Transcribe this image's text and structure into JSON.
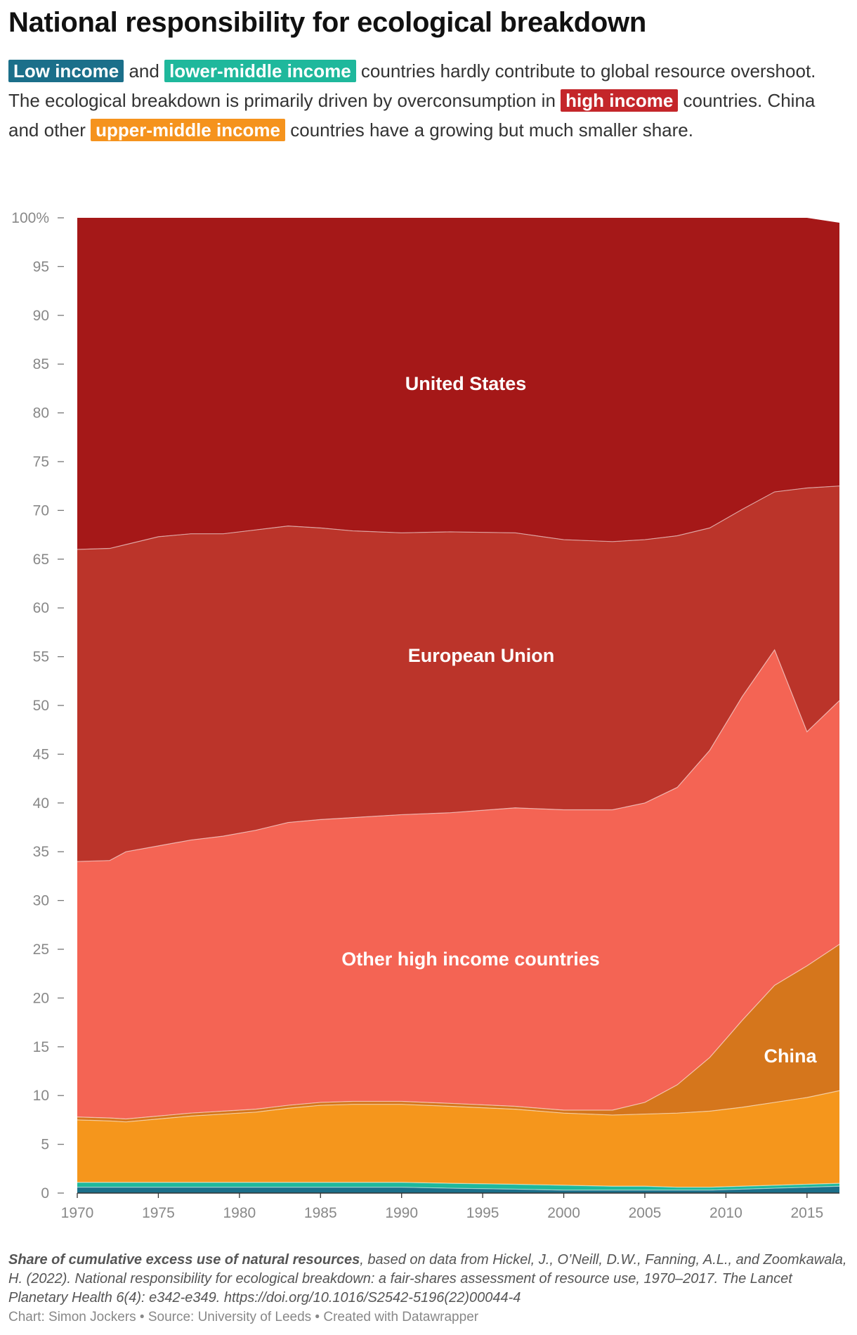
{
  "title": "National responsibility for ecological breakdown",
  "subtitle": {
    "hl_low": "Low income",
    "t1": " and ",
    "hl_lowmid": "lower-middle income",
    "t2": " countries hardly contribute to global resource overshoot. The ecological breakdown is primarily driven by overconsumption in ",
    "hl_high": "high income",
    "t3": " countries. China and other ",
    "hl_upmid": "upper-middle income",
    "t4": " countries have a growing but much smaller share."
  },
  "colors": {
    "low_income": "#1b6f8a",
    "lower_middle_income": "#1fb89c",
    "high_income": "#c4262a",
    "upper_middle_income": "#f5931d",
    "united_states": "#a51818",
    "european_union": "#bb342a",
    "other_high_income": "#f46454",
    "china": "#d5761c",
    "other_upper_middle": "#f5961c"
  },
  "chart_data": {
    "type": "area",
    "stacked": true,
    "x": [
      1970,
      1972,
      1973,
      1975,
      1977,
      1979,
      1981,
      1983,
      1985,
      1987,
      1990,
      1993,
      1997,
      2000,
      2003,
      2005,
      2007,
      2009,
      2011,
      2013,
      2015,
      2017
    ],
    "xticks": [
      1970,
      1975,
      1980,
      1985,
      1990,
      1995,
      2000,
      2005,
      2010,
      2015
    ],
    "yticks": [
      0,
      5,
      10,
      15,
      20,
      25,
      30,
      35,
      40,
      45,
      50,
      55,
      60,
      65,
      70,
      75,
      80,
      85,
      90,
      95,
      100
    ],
    "ytick_labels": [
      "0",
      "5",
      "10",
      "15",
      "20",
      "25",
      "30",
      "35",
      "40",
      "45",
      "50",
      "55",
      "60",
      "65",
      "70",
      "75",
      "80",
      "85",
      "90",
      "95",
      "100%"
    ],
    "ylim": [
      0,
      100
    ],
    "series": [
      {
        "name": "Low income",
        "color": "#1b6f8a",
        "values": [
          0.6,
          0.6,
          0.6,
          0.6,
          0.6,
          0.6,
          0.6,
          0.6,
          0.6,
          0.6,
          0.6,
          0.5,
          0.4,
          0.3,
          0.3,
          0.3,
          0.3,
          0.3,
          0.4,
          0.5,
          0.6,
          0.7
        ]
      },
      {
        "name": "Lower-middle income",
        "color": "#1fb89c",
        "values": [
          0.5,
          0.5,
          0.5,
          0.5,
          0.5,
          0.5,
          0.5,
          0.5,
          0.5,
          0.5,
          0.5,
          0.5,
          0.5,
          0.5,
          0.4,
          0.4,
          0.3,
          0.3,
          0.3,
          0.3,
          0.3,
          0.3
        ]
      },
      {
        "name": "Other upper-middle income",
        "color": "#f5961c",
        "values": [
          6.4,
          6.3,
          6.2,
          6.5,
          6.8,
          7.0,
          7.2,
          7.6,
          7.9,
          8.0,
          8.0,
          7.9,
          7.7,
          7.4,
          7.3,
          7.4,
          7.6,
          7.8,
          8.1,
          8.5,
          8.9,
          9.5
        ]
      },
      {
        "name": "China",
        "color": "#d5761c",
        "values": [
          0.3,
          0.3,
          0.3,
          0.3,
          0.3,
          0.3,
          0.3,
          0.3,
          0.3,
          0.3,
          0.3,
          0.3,
          0.3,
          0.3,
          0.5,
          1.2,
          2.9,
          5.5,
          8.9,
          12.0,
          13.5,
          15.0
        ]
      },
      {
        "name": "Other high income countries",
        "color": "#f46454",
        "values": [
          26.2,
          26.4,
          27.4,
          27.7,
          28.0,
          28.2,
          28.6,
          29.0,
          29.0,
          29.1,
          29.4,
          29.8,
          30.6,
          30.8,
          30.8,
          30.7,
          30.5,
          31.5,
          33.2,
          34.4,
          24.0,
          25.0
        ]
      },
      {
        "name": "European Union",
        "color": "#bb342a",
        "values": [
          32.0,
          32.0,
          31.5,
          31.7,
          31.4,
          31.0,
          30.8,
          30.4,
          29.9,
          29.4,
          28.9,
          28.8,
          28.2,
          27.7,
          27.5,
          27.0,
          25.8,
          22.8,
          19.2,
          16.2,
          25.0,
          22.0
        ]
      },
      {
        "name": "United States",
        "color": "#a51818",
        "values": [
          34.0,
          33.9,
          33.5,
          32.7,
          32.4,
          32.4,
          32.0,
          31.6,
          31.8,
          32.1,
          32.3,
          32.2,
          32.3,
          33.0,
          33.2,
          33.0,
          32.6,
          31.8,
          29.9,
          28.1,
          27.7,
          27.0
        ]
      }
    ],
    "labels": {
      "us": "United States",
      "eu": "European Union",
      "other_high": "Other high income countries",
      "china": "China"
    }
  },
  "notes": {
    "bold": "Share of cumulative excess use of natural resources",
    "rest": ", based on data from Hickel, J., O’Neill, D.W., Fanning, A.L., and Zoomkawala, H. (2022). National responsibility for ecological breakdown: a fair-shares assessment of resource use, 1970–2017. The Lancet Planetary Health 6(4): e342-e349. https://doi.org/10.1016/S2542-5196(22)00044-4"
  },
  "byline": "Chart: Simon Jockers • Source: University of Leeds • Created with Datawrapper"
}
